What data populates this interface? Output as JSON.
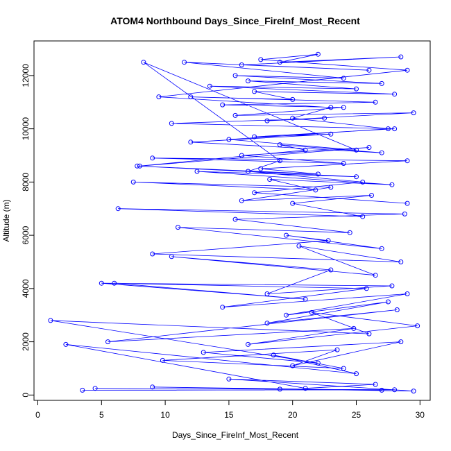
{
  "chart_data": {
    "type": "line",
    "title": "ATOM4 Northbound Days_Since_FireInf_Most_Recent",
    "xlabel": "Days_Since_FireInf_Most_Recent",
    "ylabel": "Altitude (m)",
    "xlim": [
      -0.3,
      30.8
    ],
    "ylim": [
      -200,
      13300
    ],
    "xticks": [
      0,
      5,
      10,
      15,
      20,
      25,
      30
    ],
    "yticks": [
      0,
      2000,
      4000,
      6000,
      8000,
      10000,
      12000
    ],
    "grid": false,
    "legend": "none",
    "series": [
      {
        "marker": "open-circle",
        "color": "#0000ff",
        "x": [
          3.5,
          28.0,
          4.5,
          19.0,
          27.0,
          9.0,
          29.5,
          15.0,
          26.5,
          21.0,
          2.2,
          25.0,
          18.5,
          24.0,
          9.8,
          23.5,
          20.0,
          28.5,
          13.0,
          22.0,
          1.0,
          26.0,
          21.5,
          29.8,
          16.5,
          24.8,
          5.5,
          28.2,
          18.0,
          27.5,
          19.5,
          29.0,
          14.5,
          25.8,
          6.0,
          21.0,
          5.0,
          27.8,
          18.0,
          23.0,
          10.5,
          26.5,
          20.5,
          28.5,
          9.0,
          22.8,
          19.5,
          27.0,
          11.0,
          24.5,
          15.5,
          28.8,
          6.3,
          25.5,
          20.0,
          26.2,
          16.0,
          23.0,
          7.5,
          21.8,
          18.2,
          27.8,
          12.5,
          25.0,
          7.8,
          22.0,
          17.5,
          29.0,
          9.0,
          24.0,
          16.0,
          26.0,
          8.0,
          21.0,
          19.0,
          27.0,
          12.0,
          23.0,
          17.0,
          28.0,
          10.5,
          22.5,
          18.0,
          29.5,
          15.5,
          24.0,
          14.5,
          26.5,
          12.0,
          20.0,
          17.0,
          28.0,
          13.5,
          25.0,
          16.5,
          27.0,
          15.5,
          24.0,
          11.5,
          26.0,
          16.0,
          28.5,
          19.0,
          22.0,
          17.5,
          29.0,
          9.5,
          23.0,
          20.0,
          27.5,
          15.0,
          25.0,
          8.3,
          19.0,
          16.5,
          25.5,
          17.0,
          29.0
        ],
        "y": [
          180,
          200,
          250,
          220,
          180,
          300,
          150,
          600,
          400,
          250,
          1900,
          800,
          1500,
          1000,
          1300,
          1700,
          1100,
          2000,
          1600,
          1200,
          2800,
          2300,
          3100,
          2600,
          1900,
          2500,
          2000,
          3200,
          2700,
          3500,
          3000,
          3800,
          3300,
          4000,
          4200,
          3600,
          4200,
          4100,
          3800,
          4700,
          5200,
          4500,
          5600,
          5000,
          5300,
          5800,
          6000,
          5500,
          6300,
          6100,
          6600,
          6800,
          7000,
          6700,
          7200,
          7500,
          7300,
          7800,
          8000,
          7700,
          8100,
          7900,
          8400,
          8200,
          8600,
          8300,
          8500,
          8800,
          8900,
          8700,
          9000,
          9300,
          8600,
          9200,
          9400,
          9100,
          9500,
          9800,
          9700,
          10000,
          10200,
          10400,
          10300,
          10600,
          10500,
          10800,
          10900,
          11000,
          11200,
          11100,
          11400,
          11300,
          11600,
          11500,
          11800,
          11700,
          12000,
          11900,
          12500,
          12200,
          12400,
          12700,
          12500,
          12800,
          12600,
          12200,
          11200,
          10800,
          10400,
          10000,
          9600,
          9200,
          12500,
          8800,
          8400,
          8000,
          7600,
          7200
        ]
      }
    ]
  }
}
